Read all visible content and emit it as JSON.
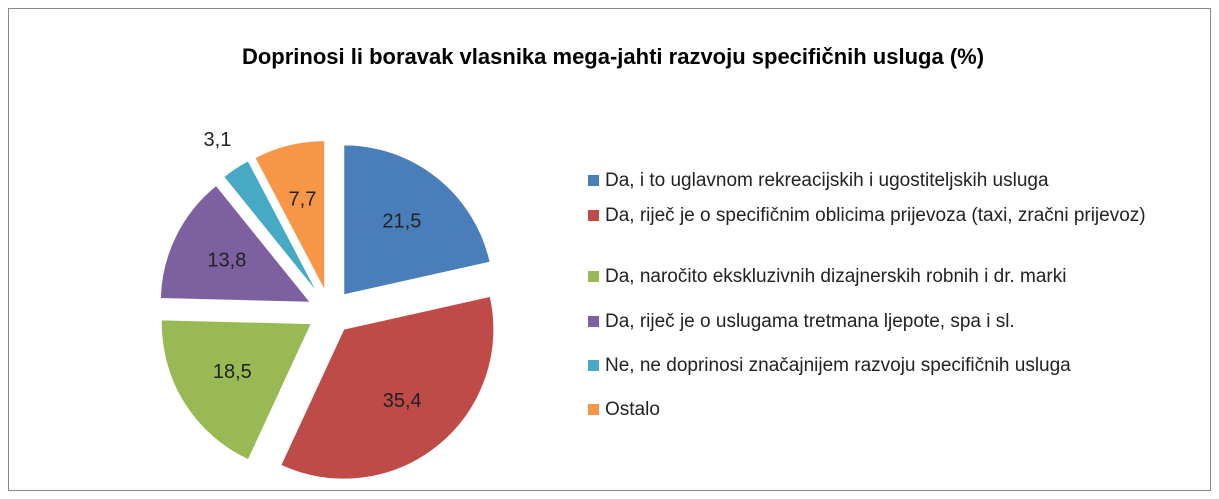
{
  "chart_data": {
    "type": "pie",
    "title": "Doprinosi li boravak vlasnika mega-jahti razvoju specifičnih usluga (%)",
    "categories": [
      "Da, i to uglavnom rekreacijskih i ugostiteljskih usluga",
      "Da, riječ je o specifičnim oblicima prijevoza (taxi, zračni prijevoz)",
      "Da, naročito ekskluzivnih dizajnerskih robnih i dr. marki",
      "Da, riječ je o uslugama tretmana ljepote, spa i sl.",
      "Ne, ne doprinosi značajnijem razvoju specifičnih usluga",
      "Ostalo"
    ],
    "values": [
      21.5,
      35.4,
      18.5,
      13.8,
      3.1,
      7.7
    ],
    "value_labels": [
      "21,5",
      "35,4",
      "18,5",
      "13,8",
      "3,1",
      "7,7"
    ],
    "colors": [
      "#4a7ebb",
      "#be4b48",
      "#98b954",
      "#7d60a0",
      "#46aac5",
      "#f79646"
    ],
    "legend": "right"
  }
}
